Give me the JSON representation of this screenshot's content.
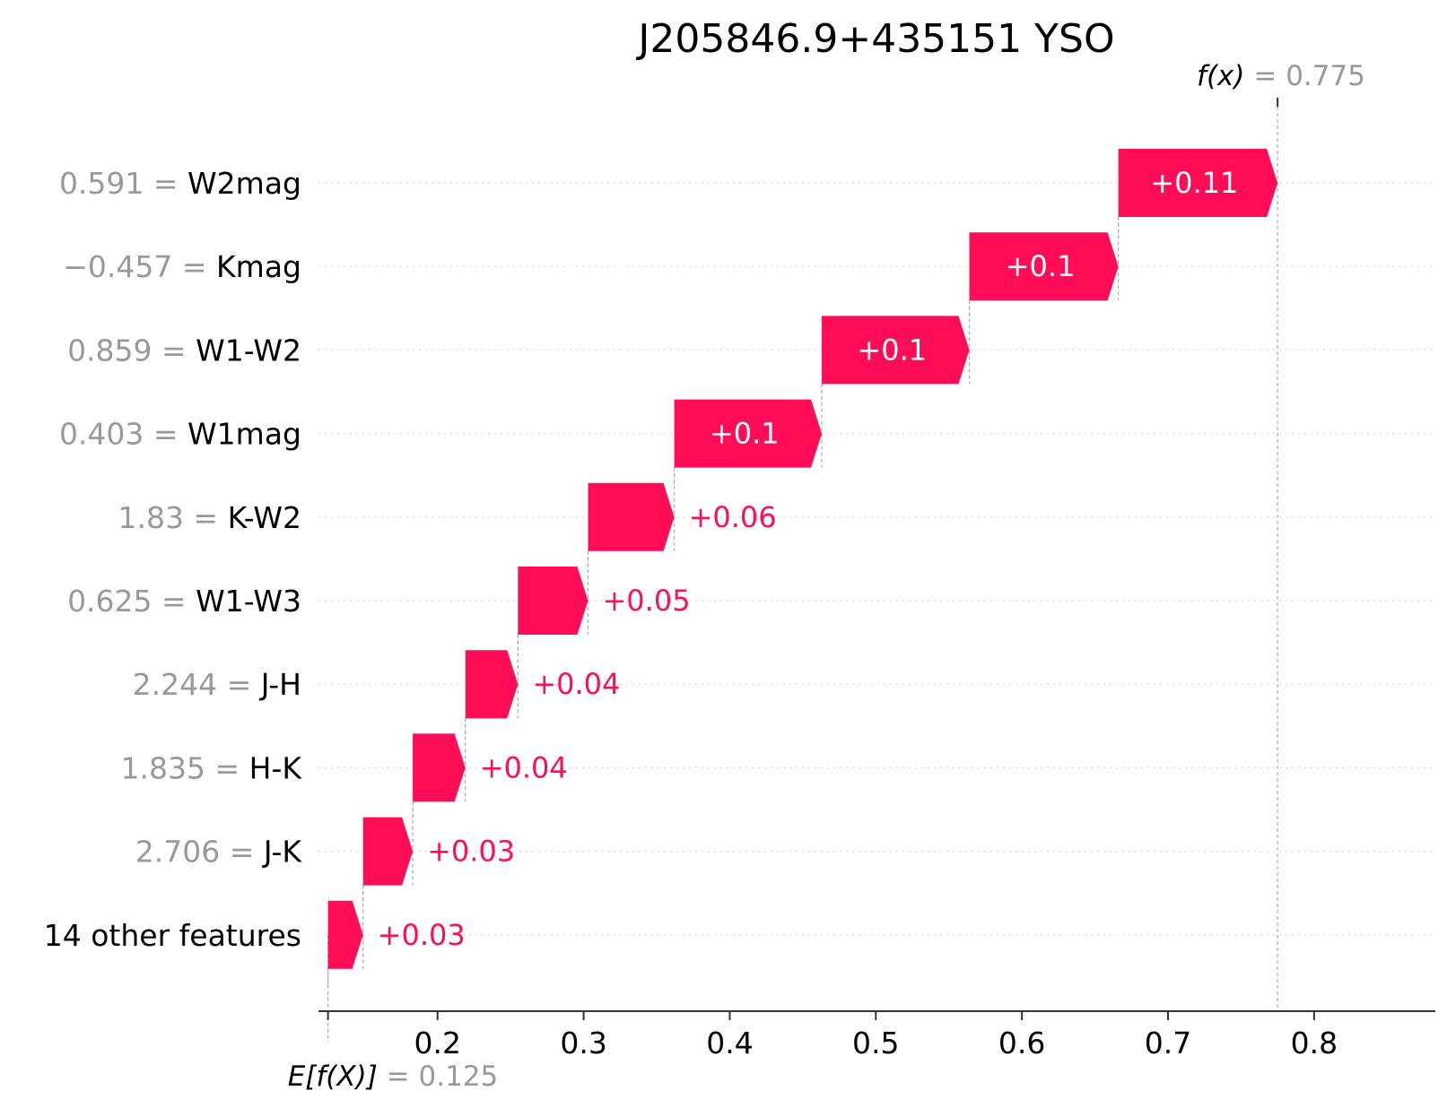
{
  "chart_data": {
    "type": "waterfall",
    "title": "J205846.9+435151 YSO",
    "base_value": 0.125,
    "base_label": {
      "expr": "E[f(X)]",
      "eq": "=",
      "value": "0.125"
    },
    "output_value": 0.775,
    "output_label": {
      "expr": "f(x)",
      "eq": "=",
      "value": "0.775"
    },
    "xlim": [
      0.124,
      0.883
    ],
    "xticks": [
      0.2,
      0.3,
      0.4,
      0.5,
      0.6,
      0.7,
      0.8
    ],
    "xtick_labels": [
      "0.2",
      "0.3",
      "0.4",
      "0.5",
      "0.6",
      "0.7",
      "0.8"
    ],
    "grid": "dotted horizontal lines per row",
    "positive_color": "#ff0d57",
    "features": [
      {
        "value": "0.591",
        "eq": "=",
        "name": "W2mag",
        "start": 0.666,
        "end": 0.775,
        "label": "+0.11"
      },
      {
        "value": "−0.457",
        "eq": "=",
        "name": "Kmag",
        "start": 0.564,
        "end": 0.666,
        "label": "+0.1"
      },
      {
        "value": "0.859",
        "eq": "=",
        "name": "W1-W2",
        "start": 0.463,
        "end": 0.564,
        "label": "+0.1"
      },
      {
        "value": "0.403",
        "eq": "=",
        "name": "W1mag",
        "start": 0.362,
        "end": 0.463,
        "label": "+0.1"
      },
      {
        "value": "1.83",
        "eq": "=",
        "name": "K-W2",
        "start": 0.303,
        "end": 0.362,
        "label": "+0.06"
      },
      {
        "value": "0.625",
        "eq": "=",
        "name": "W1-W3",
        "start": 0.255,
        "end": 0.303,
        "label": "+0.05"
      },
      {
        "value": "2.244",
        "eq": "=",
        "name": "J-H",
        "start": 0.219,
        "end": 0.255,
        "label": "+0.04"
      },
      {
        "value": "1.835",
        "eq": "=",
        "name": "H-K",
        "start": 0.183,
        "end": 0.219,
        "label": "+0.04"
      },
      {
        "value": "2.706",
        "eq": "=",
        "name": "J-K",
        "start": 0.149,
        "end": 0.183,
        "label": "+0.03"
      },
      {
        "value": "",
        "eq": "",
        "name": "14 other features",
        "start": 0.125,
        "end": 0.149,
        "label": "+0.03"
      }
    ]
  }
}
